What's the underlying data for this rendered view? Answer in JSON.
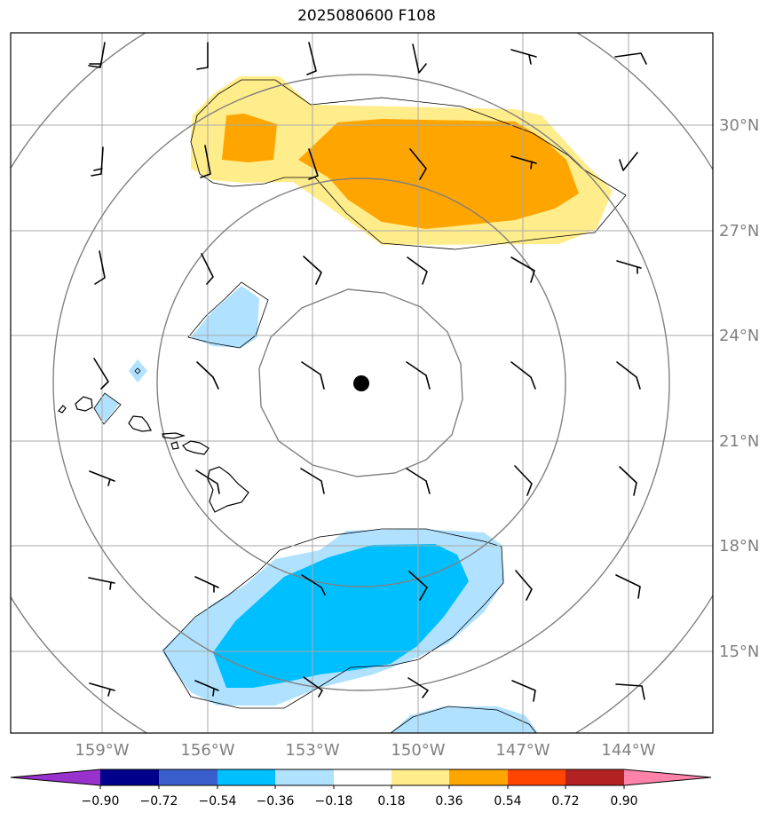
{
  "title": "2025080600 F108",
  "lat_labels": [
    "30°N",
    "27°N",
    "24°N",
    "21°N",
    "18°N",
    "15°N"
  ],
  "lon_labels": [
    "159°W",
    "156°W",
    "153°W",
    "150°W",
    "147°W",
    "144°W"
  ],
  "colorbar": {
    "tick_labels": [
      "−0.90",
      "−0.72",
      "−0.54",
      "−0.36",
      "−0.18",
      "0.18",
      "0.36",
      "0.54",
      "0.72",
      "0.90"
    ],
    "colors": [
      "#9932cc",
      "#00008b",
      "#3a5fcd",
      "#00bfff",
      "#b0e2ff",
      "#ffffff",
      "#ffec8b",
      "#ffa500",
      "#ff4500",
      "#b22222",
      "#ff82ab"
    ]
  },
  "colors": {
    "light_blue": "#b0e2ff",
    "blue": "#00bfff",
    "light_yellow": "#ffec8b",
    "orange": "#ffa500",
    "grid": "#a9a9a9",
    "range_rings": "#808080",
    "tick_label": "#808080"
  },
  "center_marker": "black-dot",
  "wind_barbs": "black",
  "islands": "Hawaiian Islands coastline"
}
